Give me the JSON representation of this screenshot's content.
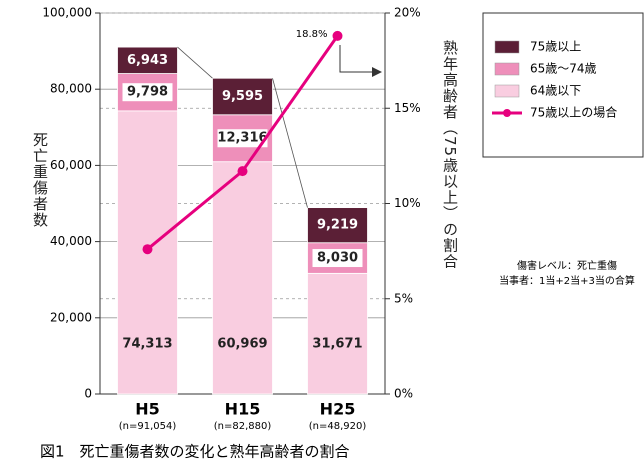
{
  "chart_data": {
    "type": "stacked-bar-line",
    "title": "図1　死亡重傷者数の変化と熟年高齢者の割合",
    "y_label": "死亡重傷者数",
    "y2_label": "熟年高齢者（75歳以上）の割合",
    "categories": [
      "H5",
      "H15",
      "H25"
    ],
    "category_notes": [
      "(n=91,054)",
      "(n=82,880)",
      "(n=48,920)"
    ],
    "series": [
      {
        "name": "64歳以下",
        "color": "#f9cde0",
        "values": [
          74313,
          60969,
          31671
        ],
        "value_labels": [
          "74,313",
          "60,969",
          "31,671"
        ]
      },
      {
        "name": "65歳～74歳",
        "color": "#ee8fba",
        "values": [
          9798,
          12316,
          8030
        ],
        "value_labels": [
          "9,798",
          "12,316",
          "8,030"
        ]
      },
      {
        "name": "75歳以上",
        "color": "#5b1f36",
        "values": [
          6943,
          9595,
          9219
        ],
        "value_labels": [
          "6,943",
          "9,595",
          "9,219"
        ]
      },
      {
        "name": "75歳以上の場合",
        "color": "#e6007e",
        "axis": "y2",
        "values": [
          7.6,
          11.7,
          18.8
        ],
        "value_labels": [
          null,
          null,
          "18.8%"
        ]
      }
    ],
    "ylim": [
      0,
      100000
    ],
    "yticks": [
      0,
      {
        "value": 20000,
        "label": "20,000"
      },
      {
        "value": 40000,
        "label": "40,000"
      },
      {
        "value": 60000,
        "label": "60,000"
      },
      {
        "value": 80000,
        "label": "80,000"
      },
      {
        "value": 100000,
        "label": "100,000"
      }
    ],
    "y2lim": [
      0,
      20
    ],
    "y2ticks": [
      {
        "value": 0,
        "label": "0%"
      },
      {
        "value": 5,
        "label": "5%"
      },
      {
        "value": 10,
        "label": "10%"
      },
      {
        "value": 15,
        "label": "15%"
      },
      {
        "value": 20,
        "label": "20%"
      }
    ],
    "grid": true,
    "annotations": [
      "傷害レベル：死亡重傷",
      "当事者：1当+2当+3当の合算"
    ]
  }
}
